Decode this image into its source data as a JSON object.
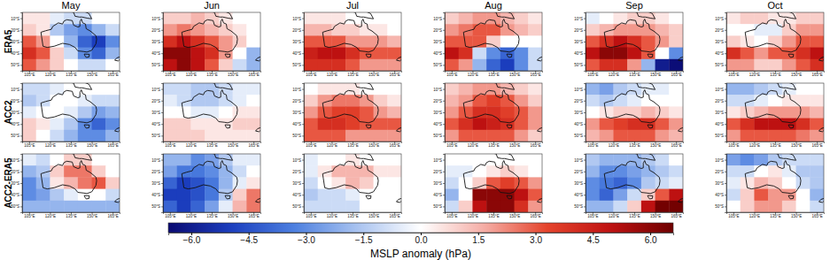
{
  "chart_data": {
    "type": "heatmap",
    "columns": [
      "May",
      "Jun",
      "Jul",
      "Aug",
      "Sep",
      "Oct"
    ],
    "rows": [
      "ERA5",
      "ACC2",
      "ACC2-ERA5"
    ],
    "x": [
      105,
      115,
      125,
      135,
      145,
      155,
      165
    ],
    "y": [
      -10,
      -20,
      -30,
      -40,
      -50
    ],
    "xlim": [
      100,
      170
    ],
    "ylim": [
      -55,
      -5
    ],
    "xticks": [
      {
        "value": 105,
        "label": "105°E"
      },
      {
        "value": 120,
        "label": "120°E"
      },
      {
        "value": 135,
        "label": "135°E"
      },
      {
        "value": 150,
        "label": "150°E"
      },
      {
        "value": 165,
        "label": "165°E"
      }
    ],
    "yticks": [
      {
        "value": -10,
        "label": "10°S"
      },
      {
        "value": -20,
        "label": "20°S"
      },
      {
        "value": -30,
        "label": "30°S"
      },
      {
        "value": -40,
        "label": "40°S"
      },
      {
        "value": -50,
        "label": "50°S"
      }
    ],
    "colorbar": {
      "label": "MSLP anomaly (hPa)",
      "range": [
        -6.6,
        6.6
      ],
      "ticks": [
        {
          "value": -6,
          "label": "−6.0"
        },
        {
          "value": -4.5,
          "label": "−4.5"
        },
        {
          "value": -3,
          "label": "−3.0"
        },
        {
          "value": -1.5,
          "label": "−1.5"
        },
        {
          "value": 0,
          "label": "0.0"
        },
        1.5,
        {
          "value": 3,
          "label": "3.0"
        },
        4.5,
        {
          "value": 6,
          "label": "6.0"
        }
      ]
    },
    "panels": [
      [
        [
          [
            0.5,
            0.5,
            -0.5,
            -1,
            -1,
            0,
            0
          ],
          [
            1,
            0.5,
            -1.5,
            -2.5,
            -3,
            -2,
            -1
          ],
          [
            3,
            2,
            0,
            -2,
            -4,
            -5,
            -3
          ],
          [
            4,
            3,
            1,
            -1,
            -3,
            -4,
            -2
          ],
          [
            3,
            2,
            1,
            0,
            -1,
            -1,
            0
          ]
        ],
        [
          [
            1,
            1,
            1.5,
            1,
            0.5,
            0,
            0
          ],
          [
            2,
            2.5,
            2,
            1.5,
            1,
            0.5,
            0
          ],
          [
            4,
            5,
            4,
            3,
            2,
            1,
            0
          ],
          [
            6,
            6,
            5,
            4,
            2,
            0,
            -2
          ],
          [
            5,
            6,
            5,
            3,
            1,
            -1,
            -2
          ]
        ],
        [
          [
            0.5,
            0.5,
            0.5,
            0,
            0,
            0,
            0
          ],
          [
            1.5,
            1.5,
            1,
            1,
            0.5,
            0.5,
            0
          ],
          [
            3,
            3,
            3,
            2,
            2,
            2,
            1.5
          ],
          [
            4.5,
            5,
            5,
            4,
            3,
            3,
            3
          ],
          [
            4,
            4,
            4,
            3,
            2,
            2,
            2
          ]
        ],
        [
          [
            1,
            1.5,
            2,
            2,
            1.5,
            1,
            0.5
          ],
          [
            2,
            2.5,
            3,
            3,
            2,
            1.5,
            1
          ],
          [
            3,
            3,
            3,
            1,
            0,
            0,
            0
          ],
          [
            5,
            4,
            -1,
            -3,
            -4,
            -3,
            -1
          ],
          [
            3,
            2,
            -2,
            -4,
            -5,
            -3,
            -1
          ]
        ],
        [
          [
            -0.5,
            0,
            0.5,
            1,
            1,
            0.5,
            0
          ],
          [
            1,
            1.5,
            2,
            2,
            2,
            1.5,
            1
          ],
          [
            3,
            4,
            5,
            4,
            3,
            2,
            1
          ],
          [
            5,
            6,
            6,
            5,
            3,
            0,
            -3
          ],
          [
            3,
            4,
            4,
            2,
            -2,
            -6,
            -6.5
          ]
        ],
        [
          [
            0.5,
            1,
            1,
            0.5,
            0.5,
            1,
            1
          ],
          [
            0,
            0,
            -0.5,
            -0.5,
            1,
            2,
            2
          ],
          [
            1,
            0.5,
            0,
            1,
            2,
            3,
            3
          ],
          [
            4,
            3,
            2,
            3,
            3,
            4,
            5
          ],
          [
            2,
            2,
            1,
            1,
            2,
            3,
            4
          ]
        ]
      ],
      [
        [
          [
            -1,
            -1,
            -0.5,
            0,
            0,
            0,
            0
          ],
          [
            -1.5,
            -1,
            0,
            0,
            -0.5,
            -1,
            -1
          ],
          [
            -0.5,
            0,
            0,
            -0.5,
            -1.5,
            -2.5,
            -2
          ],
          [
            1,
            0.5,
            -0.5,
            -1.5,
            -3,
            -4,
            -3
          ],
          [
            1,
            0,
            -1,
            -2,
            -3,
            -3,
            -2
          ]
        ],
        [
          [
            -1,
            -1,
            -1.5,
            -1.5,
            -1,
            -0.5,
            -0.5
          ],
          [
            -0.5,
            -1,
            -1.5,
            -1.5,
            -1,
            -0.5,
            0
          ],
          [
            0,
            0,
            -0.5,
            -0.5,
            0,
            0.5,
            0.5
          ],
          [
            1,
            1,
            0.5,
            0.5,
            0.5,
            1,
            1
          ],
          [
            1,
            1,
            1,
            0.5,
            0.5,
            0.5,
            0.5
          ]
        ],
        [
          [
            0,
            0.5,
            0.5,
            0.5,
            0,
            0,
            0
          ],
          [
            1,
            2,
            2.5,
            2.5,
            2,
            1,
            0.5
          ],
          [
            2,
            3,
            3.5,
            3.5,
            3,
            2,
            1.5
          ],
          [
            3,
            4,
            4,
            3.5,
            3,
            3,
            3
          ],
          [
            3,
            3,
            3,
            2,
            2,
            2,
            2
          ]
        ],
        [
          [
            1,
            1.5,
            2,
            2,
            1.5,
            1,
            0.5
          ],
          [
            1.5,
            2,
            3,
            3.5,
            3,
            2,
            1
          ],
          [
            2,
            3,
            4,
            4,
            3.5,
            3,
            2
          ],
          [
            3,
            4,
            5,
            4.5,
            4,
            3,
            2
          ],
          [
            2,
            3,
            3,
            3,
            3,
            2,
            1
          ]
        ],
        [
          [
            -2,
            -2.5,
            -1.5,
            -1,
            -0.5,
            -0.5,
            0
          ],
          [
            -1,
            -1.5,
            -1,
            -0.5,
            0,
            0,
            0
          ],
          [
            0,
            0.5,
            1,
            1,
            1.5,
            1,
            0.5
          ],
          [
            2,
            3,
            3.5,
            4,
            4,
            3,
            2
          ],
          [
            1.5,
            2,
            3,
            3,
            3,
            2,
            1.5
          ]
        ],
        [
          [
            -2,
            -2,
            -1.5,
            -1,
            -0.5,
            0,
            0
          ],
          [
            -1,
            -1,
            -0.5,
            0,
            0.5,
            0.5,
            0.5
          ],
          [
            0.5,
            1,
            1.5,
            2,
            2,
            2,
            1.5
          ],
          [
            3,
            4,
            5,
            5,
            5,
            4,
            3
          ],
          [
            2,
            3,
            3,
            3,
            3,
            2.5,
            2
          ]
        ]
      ],
      [
        [
          [
            -0.5,
            -1,
            0,
            1,
            1,
            0,
            0
          ],
          [
            -2,
            -1.5,
            1,
            2.5,
            2.5,
            1,
            0
          ],
          [
            -3,
            -2,
            0.5,
            1.5,
            2.5,
            3,
            1
          ],
          [
            -3,
            -2.5,
            -1.5,
            -0.5,
            0,
            0,
            -1
          ],
          [
            -2,
            -2,
            -2,
            -2,
            -2,
            -2,
            -2
          ]
        ],
        [
          [
            -2,
            -2,
            -3,
            -2.5,
            -1.5,
            -0.5,
            -0.5
          ],
          [
            -2.5,
            -3.5,
            -3.5,
            -3,
            -2,
            -1,
            0
          ],
          [
            -4,
            -5,
            -4.5,
            -3.5,
            -2,
            -0.5,
            0.5
          ],
          [
            -5,
            -5,
            -4.5,
            -3.5,
            -1.5,
            1,
            2.5
          ],
          [
            -4,
            -5,
            -4,
            -2.5,
            -0.5,
            1.5,
            2.5
          ]
        ],
        [
          [
            -0.5,
            0,
            0,
            0.5,
            0,
            0,
            0
          ],
          [
            -0.5,
            0.5,
            1.5,
            1.5,
            1.5,
            0.5,
            0.5
          ],
          [
            -1,
            0,
            0.5,
            1.5,
            1,
            0,
            0
          ],
          [
            -1.5,
            -1,
            -1,
            -0.5,
            0,
            0,
            0
          ],
          [
            -1,
            -1,
            -1,
            -1,
            0,
            0,
            0
          ]
        ],
        [
          [
            0,
            0,
            0,
            0,
            0,
            0,
            0
          ],
          [
            -0.5,
            -0.5,
            0,
            0.5,
            1,
            0.5,
            0
          ],
          [
            -1,
            0,
            1,
            3,
            3.5,
            3,
            2
          ],
          [
            -2,
            0,
            6,
            6,
            6,
            5,
            3
          ],
          [
            -1,
            1,
            5,
            6,
            6,
            4,
            2
          ]
        ],
        [
          [
            -1.5,
            -2,
            -2,
            -2,
            -1.5,
            -1,
            0
          ],
          [
            -2,
            -3,
            -3,
            -2.5,
            -2,
            -1.5,
            -1
          ],
          [
            -3,
            -3.5,
            -4,
            -3,
            -1.5,
            -1,
            -0.5
          ],
          [
            -3,
            -4,
            -2.5,
            -1,
            1,
            3,
            5
          ],
          [
            -2,
            -2,
            -1,
            1,
            5,
            6.5,
            6.5
          ]
        ],
        [
          [
            -2.5,
            -3,
            -2.5,
            -1.5,
            -1,
            -1,
            -1
          ],
          [
            -1,
            -1,
            0,
            0.5,
            -0.5,
            -1.5,
            -1.5
          ],
          [
            -0.5,
            0.5,
            1.5,
            1,
            0,
            -1,
            -1.5
          ],
          [
            -1,
            1,
            3,
            2,
            2,
            0,
            -2
          ],
          [
            0,
            1,
            2,
            2,
            1,
            0,
            -1
          ]
        ]
      ]
    ]
  }
}
